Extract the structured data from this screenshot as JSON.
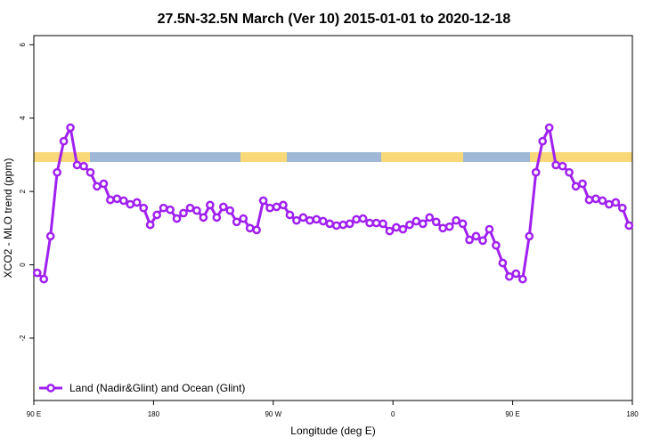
{
  "chart_data": {
    "type": "line",
    "title": "27.5N-32.5N March (Ver 10)   2015-01-01 to 2020-12-18",
    "x_label": "Longitude (deg E)",
    "y_label": "XCO2 - MLO trend (ppm)",
    "x": [
      92.5,
      97.5,
      102.5,
      107.5,
      112.5,
      117.5,
      122.5,
      127.5,
      132.5,
      137.5,
      142.5,
      147.5,
      152.5,
      157.5,
      162.5,
      167.5,
      172.5,
      177.5,
      182.5,
      187.5,
      192.5,
      197.5,
      202.5,
      207.5,
      212.5,
      217.5,
      222.5,
      227.5,
      232.5,
      237.5,
      242.5,
      247.5,
      252.5,
      257.5,
      262.5,
      267.5,
      272.5,
      277.5,
      282.5,
      287.5,
      292.5,
      297.5,
      302.5,
      307.5,
      312.5,
      317.5,
      322.5,
      327.5,
      332.5,
      337.5,
      342.5,
      347.5,
      352.5,
      357.5,
      362.5,
      367.5,
      372.5,
      377.5,
      382.5,
      387.5,
      392.5,
      397.5,
      402.5,
      407.5,
      412.5,
      417.5,
      422.5,
      427.5,
      432.5,
      437.5,
      442.5,
      447.5,
      452.5,
      457.5,
      462.5,
      467.5,
      472.5,
      477.5,
      482.5,
      487.5,
      492.5,
      497.5,
      502.5,
      507.5,
      512.5,
      517.5,
      522.5,
      527.5,
      532.5,
      537.5
    ],
    "series": [
      {
        "name": "Land (Nadir&Glint) and Ocean (Glint)",
        "color": "#a020f0",
        "values": [
          -0.22,
          -0.39,
          0.78,
          2.52,
          3.37,
          3.74,
          2.72,
          2.69,
          2.52,
          2.14,
          2.21,
          1.77,
          1.8,
          1.75,
          1.65,
          1.7,
          1.55,
          1.09,
          1.36,
          1.55,
          1.5,
          1.26,
          1.41,
          1.55,
          1.48,
          1.29,
          1.63,
          1.29,
          1.58,
          1.48,
          1.17,
          1.26,
          1.0,
          0.95,
          1.75,
          1.55,
          1.58,
          1.63,
          1.36,
          1.21,
          1.29,
          1.21,
          1.24,
          1.19,
          1.12,
          1.07,
          1.09,
          1.12,
          1.24,
          1.26,
          1.14,
          1.14,
          1.12,
          0.92,
          1.02,
          0.97,
          1.09,
          1.19,
          1.12,
          1.29,
          1.17,
          1.0,
          1.04,
          1.21,
          1.12,
          0.68,
          0.78,
          0.66,
          0.97,
          0.53,
          0.05,
          -0.32,
          -0.24,
          -0.39,
          0.78,
          2.52,
          3.37,
          3.74,
          2.72,
          2.69,
          2.52,
          2.14,
          2.21,
          1.77,
          1.8,
          1.75,
          1.65,
          1.7,
          1.55,
          1.07
        ]
      }
    ],
    "xlim": [
      90,
      540
    ],
    "xticks": [
      {
        "value": 90,
        "label": "90 E"
      },
      180,
      {
        "value": 270,
        "label": "90 W"
      },
      {
        "value": 360,
        "label": "0"
      },
      {
        "value": 450,
        "label": "90 E"
      },
      {
        "value": 540,
        "label": "180"
      }
    ],
    "ylim": [
      -3.7,
      6.25
    ],
    "yticks": [
      -2,
      0,
      2,
      4,
      6
    ],
    "grid": false,
    "legend": "bottom left"
  }
}
